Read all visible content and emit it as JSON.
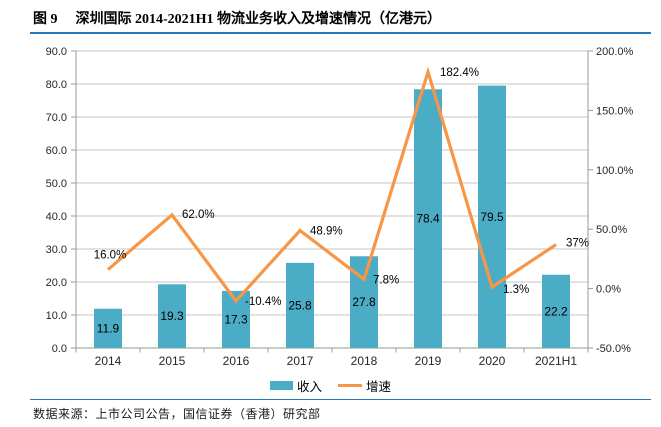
{
  "header": {
    "figure_label": "图 9",
    "title": "深圳国际 2014-2021H1 物流业务收入及增速情况（亿港元）"
  },
  "chart_data": {
    "type": "bar+line combo",
    "title": "深圳国际 2014-2021H1 物流业务收入及增速情况（亿港元）",
    "categories": [
      "2014",
      "2015",
      "2016",
      "2017",
      "2018",
      "2019",
      "2020",
      "2021H1"
    ],
    "series": [
      {
        "name": "收入",
        "type": "bar",
        "axis": "left",
        "color": "#4BACC6",
        "values": [
          11.9,
          19.3,
          17.3,
          25.8,
          27.8,
          78.4,
          79.5,
          22.2
        ],
        "labels": [
          "11.9",
          "19.3",
          "17.3",
          "25.8",
          "27.8",
          "78.4",
          "79.5",
          "22.2"
        ]
      },
      {
        "name": "增速",
        "type": "line",
        "axis": "right",
        "color": "#F79646",
        "values": [
          16.0,
          62.0,
          -10.4,
          48.9,
          7.8,
          182.4,
          1.3,
          37
        ],
        "labels": [
          "16.0%",
          "62.0%",
          "-10.4%",
          "48.9%",
          "7.8%",
          "182.4%",
          "1.3%",
          "37%"
        ]
      }
    ],
    "left_axis": {
      "min": 0,
      "max": 90,
      "step": 10,
      "tick_labels": [
        "0.0",
        "10.0",
        "20.0",
        "30.0",
        "40.0",
        "50.0",
        "60.0",
        "70.0",
        "80.0",
        "90.0"
      ]
    },
    "right_axis": {
      "min": -50,
      "max": 200,
      "step": 50,
      "tick_labels": [
        "-50.0%",
        "0.0%",
        "50.0%",
        "100.0%",
        "150.0%",
        "200.0%"
      ]
    },
    "grid": true,
    "legend_position": "bottom"
  },
  "footer": {
    "source": "数据来源：上市公司公告，国信证券（香港）研究部"
  },
  "colors": {
    "bar": "#4BACC6",
    "line": "#F79646",
    "rule": "#2878B8",
    "gridline": "#C6C6C6",
    "axis": "#9A9A9A"
  }
}
